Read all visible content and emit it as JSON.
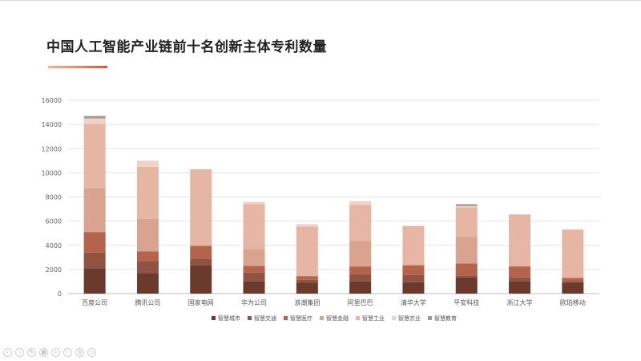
{
  "slide": {
    "title": "中国人工智能产业链前十名创新主体专利数量"
  },
  "controls": [
    {
      "name": "prev-slide-icon",
      "glyph": "‹"
    },
    {
      "name": "next-slide-icon",
      "glyph": "›"
    },
    {
      "name": "pen-tool-icon",
      "glyph": "✎"
    },
    {
      "name": "slides-grid-icon",
      "glyph": "▦"
    },
    {
      "name": "zoom-icon",
      "glyph": "⌕"
    },
    {
      "name": "more-options-icon",
      "glyph": "⋯"
    },
    {
      "name": "laser-pointer-icon",
      "glyph": "◎"
    },
    {
      "name": "subtitles-icon",
      "glyph": "▭"
    }
  ],
  "chart_data": {
    "type": "bar",
    "stacked": true,
    "title": "",
    "xlabel": "",
    "ylabel": "",
    "ylim": [
      0,
      16000
    ],
    "yticks": [
      0,
      2000,
      4000,
      6000,
      8000,
      10000,
      12000,
      14000,
      16000
    ],
    "grid": true,
    "legend": "bottom",
    "categories": [
      "百度公司",
      "腾讯公司",
      "国家电网",
      "华为公司",
      "浪潮集团",
      "阿里巴巴",
      "清华大学",
      "平安科技",
      "浙江大学",
      "欧珀移动"
    ],
    "series": [
      {
        "name": "智慧城市",
        "color": "#6b3a2c",
        "values": [
          2100,
          1700,
          2350,
          1000,
          900,
          1000,
          950,
          1350,
          1000,
          900
        ]
      },
      {
        "name": "智慧交通",
        "color": "#8f5441",
        "values": [
          1300,
          1000,
          550,
          750,
          250,
          600,
          600,
          150,
          350,
          150
        ]
      },
      {
        "name": "智慧医疗",
        "color": "#b5644b",
        "values": [
          1700,
          800,
          1050,
          550,
          300,
          650,
          800,
          1000,
          900,
          250
        ]
      },
      {
        "name": "智慧金融",
        "color": "#d9a390",
        "values": [
          3650,
          2700,
          0,
          1400,
          0,
          2100,
          0,
          2200,
          0,
          0
        ]
      },
      {
        "name": "智慧工业",
        "color": "#e6b5a3",
        "values": [
          5300,
          4300,
          6350,
          3700,
          4100,
          3000,
          3250,
          2450,
          4300,
          4000
        ]
      },
      {
        "name": "智慧农业",
        "color": "#f0d2c6",
        "values": [
          450,
          500,
          0,
          200,
          200,
          300,
          0,
          100,
          0,
          0
        ]
      },
      {
        "name": "智慧教育",
        "color": "#9e9a99",
        "values": [
          200,
          0,
          0,
          0,
          0,
          0,
          0,
          150,
          0,
          0
        ]
      }
    ]
  }
}
